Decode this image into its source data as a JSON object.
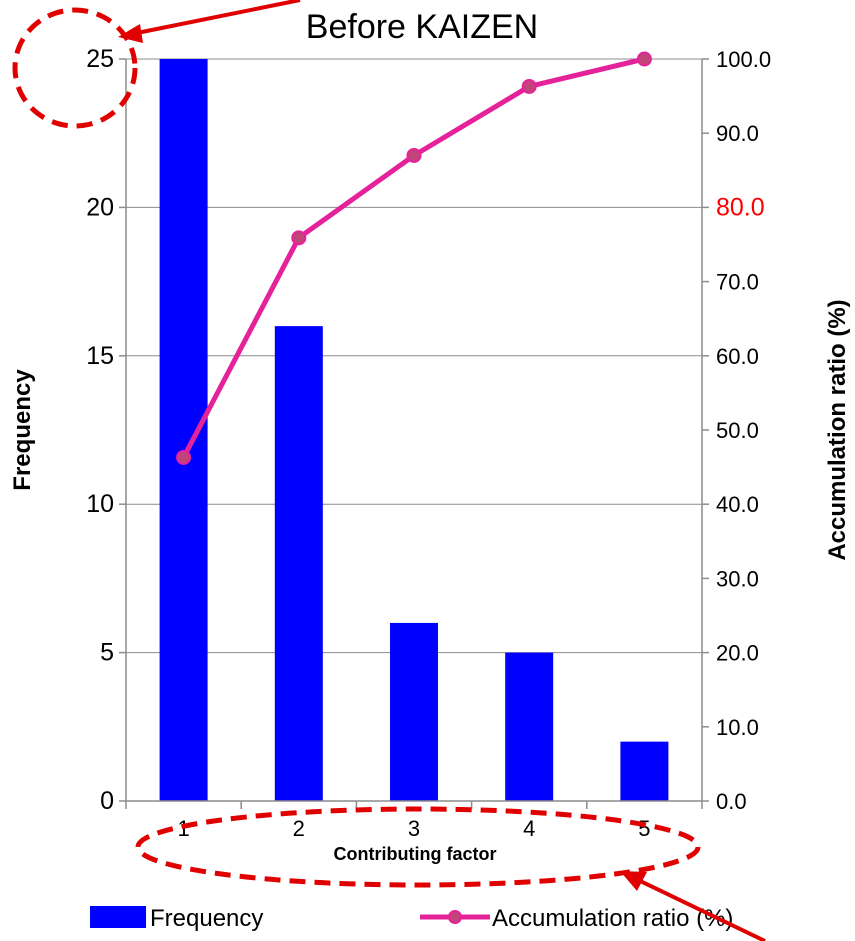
{
  "chart_data": {
    "type": "bar",
    "title": "Before KAIZEN",
    "categories": [
      "1",
      "2",
      "3",
      "4",
      "5"
    ],
    "xlabel": "Contributing factor",
    "ylabel": "Frequency",
    "y2label": "Accumulation ratio (%)",
    "ylim": [
      0,
      25
    ],
    "y2lim": [
      0,
      100
    ],
    "yticks": [
      "0",
      "5",
      "10",
      "15",
      "20",
      "25"
    ],
    "y2ticks": [
      "0.0",
      "10.0",
      "20.0",
      "30.0",
      "40.0",
      "50.0",
      "60.0",
      "70.0",
      "80.0",
      "90.0",
      "100.0"
    ],
    "highlight_y2_tick": "80.0",
    "series": [
      {
        "name": "Frequency",
        "type": "bar",
        "axis": "left",
        "values": [
          25,
          16,
          6,
          5,
          2
        ]
      },
      {
        "name": "Accumulation ratio (%)",
        "type": "line",
        "axis": "right",
        "values": [
          46.3,
          75.9,
          87.0,
          96.3,
          100.0
        ]
      }
    ],
    "grid": true,
    "legend_position": "bottom",
    "colors": {
      "bar": "#0000ff",
      "line": "#e6229a",
      "marker": "#c2457a",
      "highlight_tick": "#ff0000",
      "annotation": "#e10000"
    }
  }
}
